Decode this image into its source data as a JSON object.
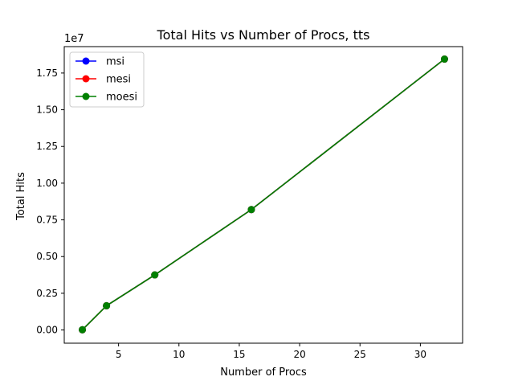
{
  "chart_data": {
    "type": "line",
    "title": "Total Hits vs Number of Procs, tts",
    "xlabel": "Number of Procs",
    "ylabel": "Total Hits",
    "y_offset_label": "1e7",
    "xlim": [
      0.5,
      33.5
    ],
    "ylim": [
      -900000.0,
      19300000.0
    ],
    "x_ticks": [
      5,
      10,
      15,
      20,
      25,
      30
    ],
    "x_tick_labels": [
      "5",
      "10",
      "15",
      "20",
      "25",
      "30"
    ],
    "y_ticks": [
      0,
      2500000,
      5000000,
      7500000,
      10000000,
      12500000,
      15000000,
      17500000
    ],
    "y_tick_labels": [
      "0.00",
      "0.25",
      "0.50",
      "0.75",
      "1.00",
      "1.25",
      "1.50",
      "1.75"
    ],
    "grid": false,
    "legend_position": "upper-left",
    "x": [
      2,
      4,
      8,
      16,
      32
    ],
    "series": [
      {
        "name": "msi",
        "color": "#0000ff",
        "values": [
          15000,
          1650000,
          3750000,
          8200000,
          18450000
        ]
      },
      {
        "name": "mesi",
        "color": "#ff0000",
        "values": [
          15000,
          1650000,
          3750000,
          8200000,
          18450000
        ]
      },
      {
        "name": "moesi",
        "color": "#008000",
        "values": [
          15000,
          1650000,
          3750000,
          8200000,
          18450000
        ]
      }
    ]
  }
}
